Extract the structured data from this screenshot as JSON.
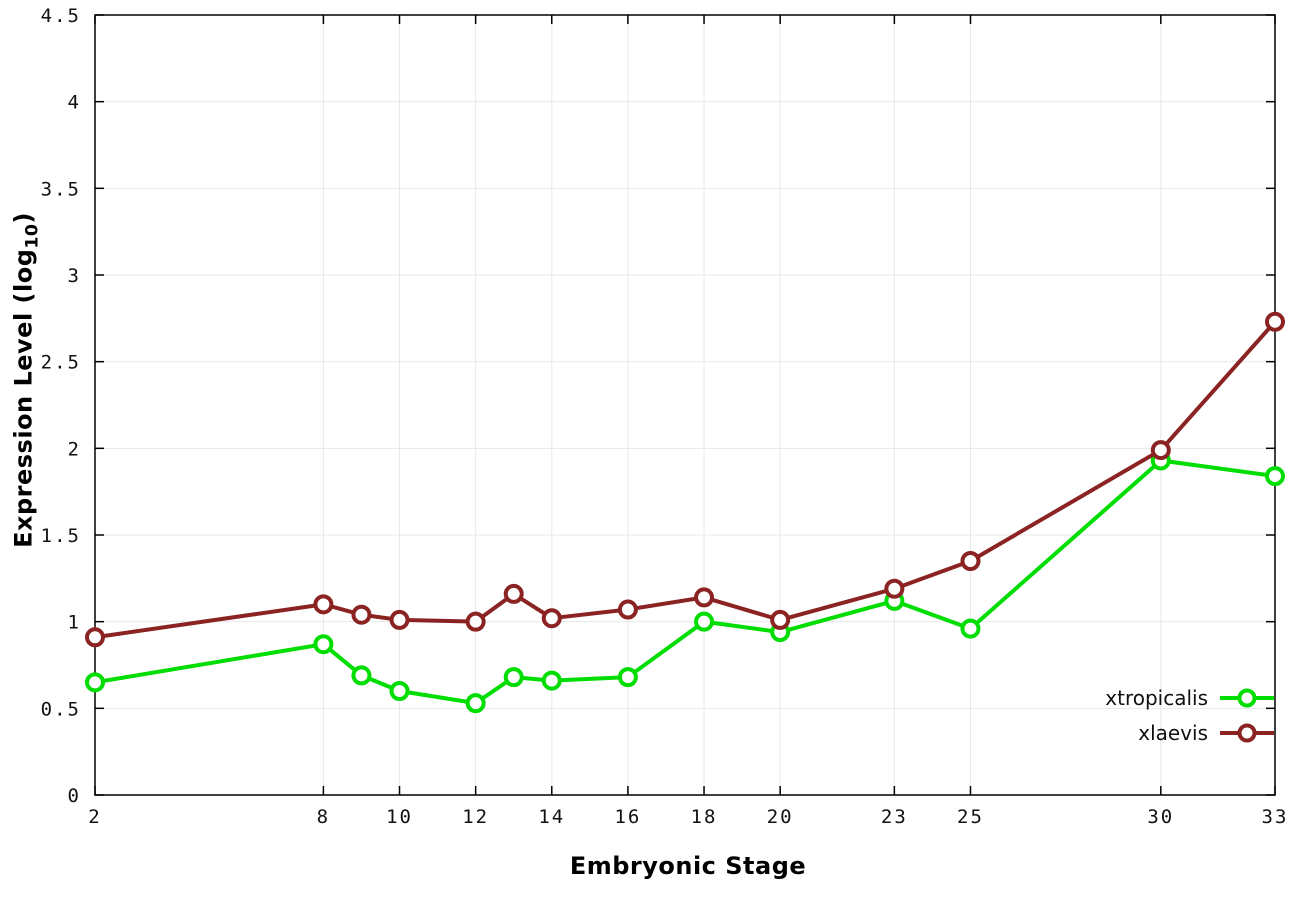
{
  "page": {
    "background_color": "#ffffff"
  },
  "chart_data": {
    "type": "line",
    "title": "",
    "xlabel": "Embryonic Stage",
    "ylabel": "Expression Level (log10)",
    "ylabel_parts": {
      "prefix": "Expression Level (log",
      "sub": "10",
      "suffix": ")"
    },
    "xlim": [
      2,
      33
    ],
    "ylim": [
      0,
      4.5
    ],
    "x_ticks": [
      2,
      8,
      10,
      12,
      14,
      16,
      18,
      20,
      23,
      25,
      30,
      33
    ],
    "y_ticks": [
      0,
      0.5,
      1,
      1.5,
      2,
      2.5,
      3,
      3.5,
      4,
      4.5
    ],
    "grid": true,
    "legend_position": "bottom-right",
    "marker": "open-circle",
    "x": [
      2,
      8,
      9,
      10,
      12,
      13,
      14,
      16,
      18,
      20,
      23,
      25,
      30,
      33
    ],
    "series": [
      {
        "name": "xtropicalis",
        "color": "#00dd00",
        "values": [
          0.65,
          0.87,
          0.69,
          0.6,
          0.53,
          0.68,
          0.66,
          0.68,
          1.0,
          0.94,
          1.12,
          0.96,
          1.93,
          1.84
        ]
      },
      {
        "name": "xlaevis",
        "color": "#8b2323",
        "values": [
          0.91,
          1.1,
          1.04,
          1.01,
          1.0,
          1.16,
          1.02,
          1.07,
          1.14,
          1.01,
          1.19,
          1.35,
          1.99,
          2.73
        ]
      }
    ]
  }
}
